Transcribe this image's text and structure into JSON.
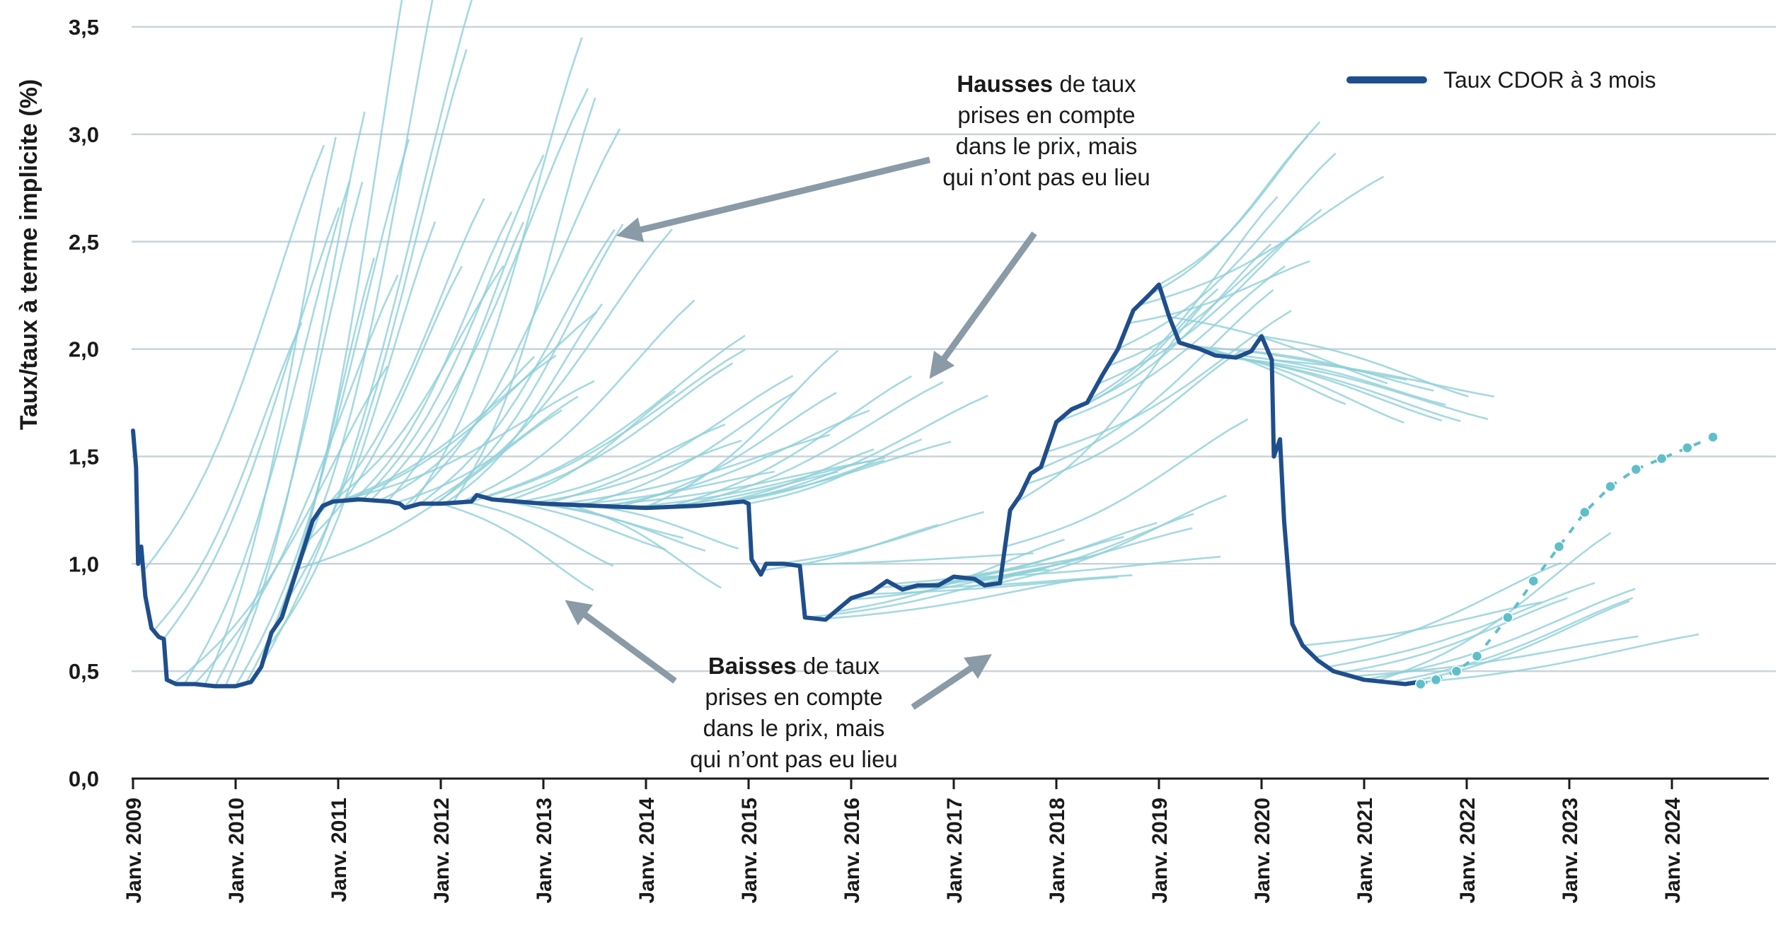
{
  "chart_data": {
    "type": "line",
    "ylabel": "Taux/taux à terme implicite (%)",
    "ylim": [
      0,
      3.5
    ],
    "yticks": [
      "0,0",
      "0,5",
      "1,0",
      "1,5",
      "2,0",
      "2,5",
      "3,0",
      "3,5"
    ],
    "xlim": [
      2009,
      2025
    ],
    "xticks": [
      "Janv. 2009",
      "Janv. 2010",
      "Janv. 2011",
      "Janv. 2012",
      "Janv. 2013",
      "Janv. 2014",
      "Janv. 2015",
      "Janv. 2016",
      "Janv. 2017",
      "Janv. 2018",
      "Janv. 2019",
      "Janv. 2020",
      "Janv. 2021",
      "Janv. 2022",
      "Janv. 2023",
      "Janv. 2024"
    ],
    "legend": {
      "label": "Taux CDOR à 3 mois",
      "position": "top-right",
      "color": "#1f4e8c"
    },
    "annotations": {
      "hausses": {
        "bold": "Hausses",
        "lines": [
          " de taux",
          "prises en compte",
          "dans le prix, mais",
          "qui n’ont pas eu lieu"
        ]
      },
      "baisses": {
        "bold": "Baisses",
        "lines": [
          " de taux",
          "prises en compte",
          "dans le prix, mais",
          "qui n’ont pas eu lieu"
        ]
      }
    },
    "series": [
      {
        "name": "Taux CDOR à 3 mois",
        "color": "#1f4e8c",
        "points": [
          [
            2009.0,
            1.62
          ],
          [
            2009.03,
            1.45
          ],
          [
            2009.05,
            1.0
          ],
          [
            2009.08,
            1.08
          ],
          [
            2009.12,
            0.85
          ],
          [
            2009.18,
            0.7
          ],
          [
            2009.25,
            0.66
          ],
          [
            2009.3,
            0.65
          ],
          [
            2009.33,
            0.46
          ],
          [
            2009.42,
            0.44
          ],
          [
            2009.6,
            0.44
          ],
          [
            2009.8,
            0.43
          ],
          [
            2010.0,
            0.43
          ],
          [
            2010.15,
            0.45
          ],
          [
            2010.25,
            0.52
          ],
          [
            2010.35,
            0.68
          ],
          [
            2010.45,
            0.75
          ],
          [
            2010.55,
            0.9
          ],
          [
            2010.65,
            1.05
          ],
          [
            2010.75,
            1.2
          ],
          [
            2010.85,
            1.27
          ],
          [
            2010.95,
            1.29
          ],
          [
            2011.2,
            1.3
          ],
          [
            2011.5,
            1.29
          ],
          [
            2011.6,
            1.28
          ],
          [
            2011.65,
            1.26
          ],
          [
            2011.8,
            1.28
          ],
          [
            2012.0,
            1.28
          ],
          [
            2012.3,
            1.29
          ],
          [
            2012.35,
            1.32
          ],
          [
            2012.5,
            1.3
          ],
          [
            2013.0,
            1.28
          ],
          [
            2013.5,
            1.27
          ],
          [
            2014.0,
            1.26
          ],
          [
            2014.5,
            1.27
          ],
          [
            2014.95,
            1.29
          ],
          [
            2015.0,
            1.28
          ],
          [
            2015.03,
            1.02
          ],
          [
            2015.12,
            0.95
          ],
          [
            2015.17,
            1.0
          ],
          [
            2015.35,
            1.0
          ],
          [
            2015.5,
            0.99
          ],
          [
            2015.55,
            0.75
          ],
          [
            2015.75,
            0.74
          ],
          [
            2015.9,
            0.8
          ],
          [
            2016.0,
            0.84
          ],
          [
            2016.2,
            0.87
          ],
          [
            2016.35,
            0.92
          ],
          [
            2016.5,
            0.88
          ],
          [
            2016.65,
            0.9
          ],
          [
            2016.85,
            0.9
          ],
          [
            2017.0,
            0.94
          ],
          [
            2017.2,
            0.93
          ],
          [
            2017.3,
            0.9
          ],
          [
            2017.45,
            0.91
          ],
          [
            2017.55,
            1.25
          ],
          [
            2017.65,
            1.32
          ],
          [
            2017.75,
            1.42
          ],
          [
            2017.85,
            1.45
          ],
          [
            2018.0,
            1.66
          ],
          [
            2018.15,
            1.72
          ],
          [
            2018.3,
            1.75
          ],
          [
            2018.45,
            1.88
          ],
          [
            2018.6,
            2.0
          ],
          [
            2018.75,
            2.18
          ],
          [
            2018.9,
            2.25
          ],
          [
            2019.0,
            2.3
          ],
          [
            2019.1,
            2.15
          ],
          [
            2019.2,
            2.03
          ],
          [
            2019.4,
            2.0
          ],
          [
            2019.55,
            1.97
          ],
          [
            2019.75,
            1.96
          ],
          [
            2019.9,
            1.99
          ],
          [
            2020.0,
            2.06
          ],
          [
            2020.1,
            1.95
          ],
          [
            2020.12,
            1.5
          ],
          [
            2020.18,
            1.58
          ],
          [
            2020.22,
            1.2
          ],
          [
            2020.3,
            0.72
          ],
          [
            2020.4,
            0.62
          ],
          [
            2020.55,
            0.55
          ],
          [
            2020.7,
            0.5
          ],
          [
            2020.85,
            0.48
          ],
          [
            2021.0,
            0.46
          ],
          [
            2021.2,
            0.45
          ],
          [
            2021.4,
            0.44
          ],
          [
            2021.55,
            0.45
          ]
        ]
      }
    ],
    "forward_curve_points": [
      [
        2021.55,
        0.44
      ],
      [
        2021.7,
        0.46
      ],
      [
        2021.9,
        0.5
      ],
      [
        2022.1,
        0.57
      ],
      [
        2022.4,
        0.75
      ],
      [
        2022.65,
        0.92
      ],
      [
        2022.9,
        1.08
      ],
      [
        2023.15,
        1.24
      ],
      [
        2023.4,
        1.36
      ],
      [
        2023.65,
        1.44
      ],
      [
        2023.9,
        1.49
      ],
      [
        2024.15,
        1.54
      ],
      [
        2024.4,
        1.59
      ]
    ]
  }
}
